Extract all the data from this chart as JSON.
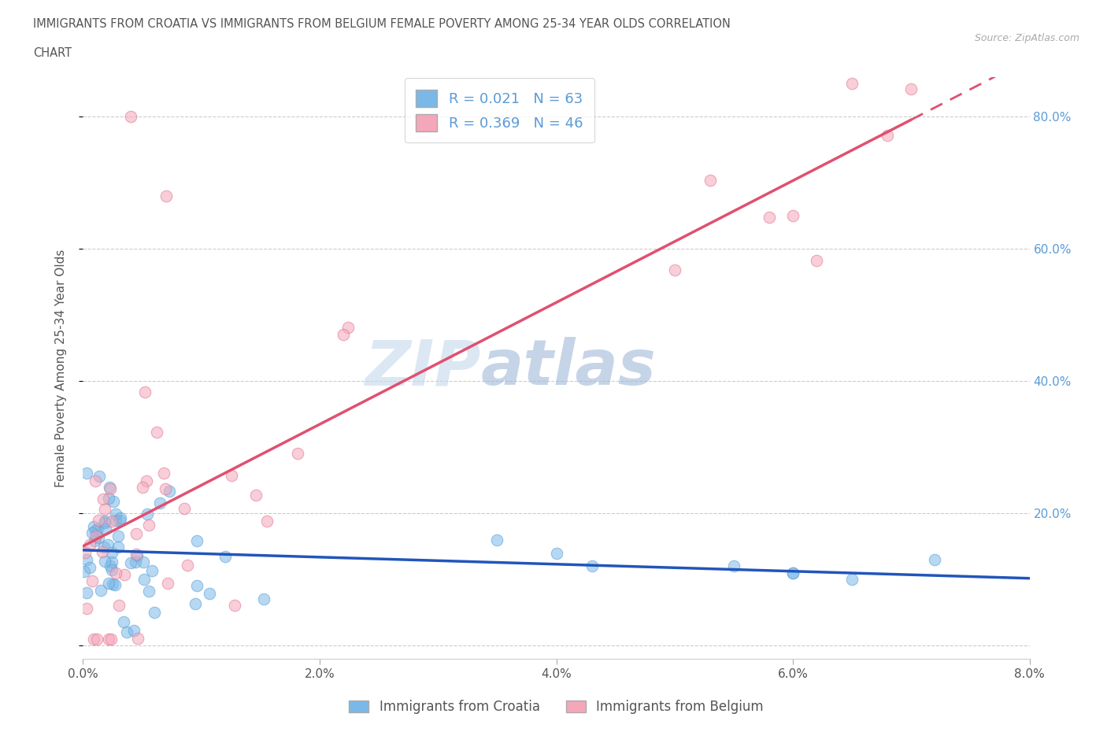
{
  "title_line1": "IMMIGRANTS FROM CROATIA VS IMMIGRANTS FROM BELGIUM FEMALE POVERTY AMONG 25-34 YEAR OLDS CORRELATION",
  "title_line2": "CHART",
  "source": "Source: ZipAtlas.com",
  "ylabel": "Female Poverty Among 25-34 Year Olds",
  "xlim": [
    0.0,
    0.08
  ],
  "ylim": [
    -0.02,
    0.86
  ],
  "xticks": [
    0.0,
    0.02,
    0.04,
    0.06,
    0.08
  ],
  "xtick_labels": [
    "0.0%",
    "2.0%",
    "4.0%",
    "6.0%",
    "8.0%"
  ],
  "yticks": [
    0.0,
    0.2,
    0.4,
    0.6,
    0.8
  ],
  "ytick_labels_right": [
    "",
    "20.0%",
    "40.0%",
    "60.0%",
    "80.0%"
  ],
  "croatia_color": "#7ab8e8",
  "croatia_edge": "#5a9ed4",
  "belgium_color": "#f4a7b9",
  "belgium_edge": "#e07090",
  "croatia_line_color": "#2255bb",
  "belgium_line_color": "#e05070",
  "croatia_R": 0.021,
  "croatia_N": 63,
  "belgium_R": 0.369,
  "belgium_N": 46,
  "legend_label_croatia": "Immigrants from Croatia",
  "legend_label_belgium": "Immigrants from Belgium",
  "watermark_zip": "ZIP",
  "watermark_atlas": "atlas",
  "grid_color": "#cccccc",
  "tick_label_color": "#5b9bd5",
  "source_color": "#aaaaaa",
  "title_color": "#555555"
}
